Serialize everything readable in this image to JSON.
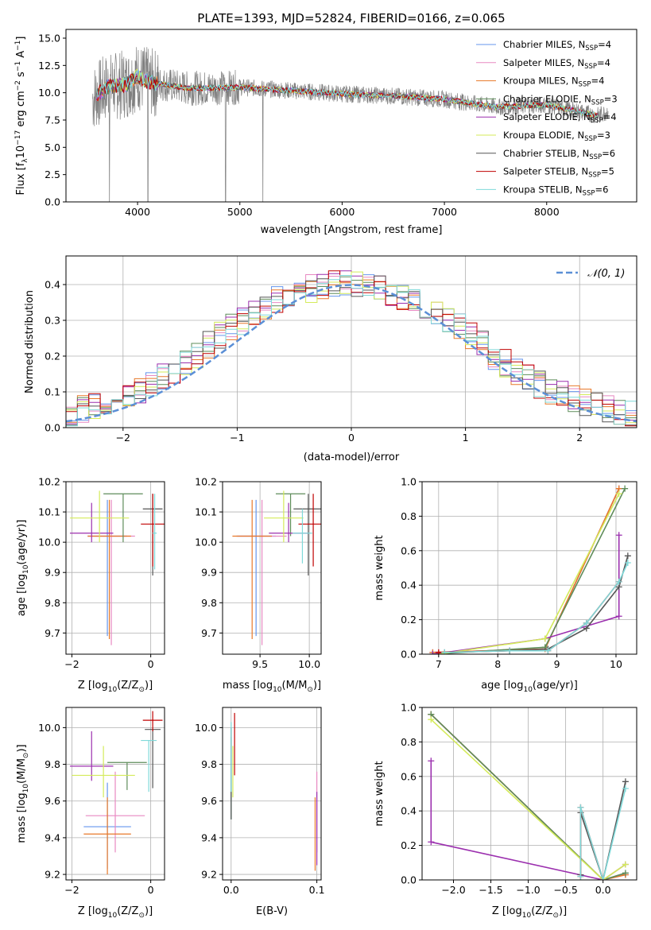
{
  "colors": {
    "chabrier_miles": "#6495ED",
    "salpeter_miles": "#E889C2",
    "kroupa_miles": "#E8792A",
    "chabrier_elodie": "#5E8C5A",
    "salpeter_elodie": "#9B2FAE",
    "kroupa_elodie": "#D4EB5A",
    "chabrier_stelib": "#555555",
    "salpeter_stelib": "#C00000",
    "kroupa_stelib": "#7FD9D9",
    "data": "#808080",
    "normal": "#5B8FD6"
  },
  "chart_data": [
    {
      "type": "line",
      "title": "PLATE=1393, MJD=52824, FIBERID=0166, z=0.065",
      "xlabel": "wavelength [Angstrom, rest frame]",
      "ylabel_parts": [
        "Flux [",
        "f",
        "λ",
        "10",
        "−17",
        " erg cm",
        "−2",
        " s",
        "−1",
        " A",
        "−1",
        "]"
      ],
      "xlim": [
        3300,
        8880
      ],
      "ylim": [
        0,
        15.8
      ],
      "xticks": [
        4000,
        5000,
        6000,
        7000,
        8000
      ],
      "yticks": [
        0.0,
        2.5,
        5.0,
        7.5,
        10.0,
        12.5,
        15.0
      ],
      "grid": false,
      "legend_position": "top-right",
      "series": [
        {
          "key": "chabrier_miles",
          "label_main": "Chabrier MILES, N",
          "label_sub": "SSP",
          "label_end": "=4"
        },
        {
          "key": "salpeter_miles",
          "label_main": "Salpeter MILES, N",
          "label_sub": "SSP",
          "label_end": "=4"
        },
        {
          "key": "kroupa_miles",
          "label_main": "Kroupa MILES, N",
          "label_sub": "SSP",
          "label_end": "=4"
        },
        {
          "key": "chabrier_elodie",
          "label_main": "Chabrier ELODIE, N",
          "label_sub": "SSP",
          "label_end": "=3"
        },
        {
          "key": "salpeter_elodie",
          "label_main": "Salpeter ELODIE, N",
          "label_sub": "SSP",
          "label_end": "=4"
        },
        {
          "key": "kroupa_elodie",
          "label_main": "Kroupa ELODIE, N",
          "label_sub": "SSP",
          "label_end": "=3"
        },
        {
          "key": "chabrier_stelib",
          "label_main": "Chabrier STELIB, N",
          "label_sub": "SSP",
          "label_end": "=6"
        },
        {
          "key": "salpeter_stelib",
          "label_main": "Salpeter STELIB, N",
          "label_sub": "SSP",
          "label_end": "=5"
        },
        {
          "key": "kroupa_stelib",
          "label_main": "Kroupa STELIB, N",
          "label_sub": "SSP",
          "label_end": "=6"
        }
      ],
      "spectrum_approx": {
        "x": [
          3560,
          3700,
          3900,
          4000,
          4100,
          4300,
          4500,
          5000,
          5500,
          6000,
          6500,
          7000,
          7500,
          8000,
          8500,
          8600
        ],
        "y": [
          9.5,
          10.5,
          10.8,
          11.5,
          11.0,
          10.7,
          10.4,
          10.5,
          10.2,
          9.9,
          9.7,
          9.4,
          8.7,
          8.9,
          7.9,
          8.3
        ]
      }
    },
    {
      "type": "histogram",
      "xlabel": "(data-model)/error",
      "ylabel": "Normed distribution",
      "xlim": [
        -2.5,
        2.5
      ],
      "ylim": [
        0,
        0.48
      ],
      "xticks": [
        -2,
        -1,
        0,
        1,
        2
      ],
      "yticks": [
        0.0,
        0.1,
        0.2,
        0.3,
        0.4
      ],
      "grid": true,
      "legend_label": "𝒩(0, 1)",
      "legend_position": "top-right",
      "bin_width": 0.1,
      "envelope_approx": [
        0.04,
        0.05,
        0.06,
        0.07,
        0.08,
        0.09,
        0.1,
        0.12,
        0.14,
        0.16,
        0.18,
        0.2,
        0.23,
        0.26,
        0.28,
        0.3,
        0.32,
        0.34,
        0.36,
        0.37,
        0.38,
        0.39,
        0.39,
        0.4,
        0.4,
        0.4,
        0.39,
        0.39,
        0.38,
        0.37,
        0.36,
        0.34,
        0.32,
        0.3,
        0.28,
        0.26,
        0.23,
        0.2,
        0.18,
        0.16,
        0.14,
        0.12,
        0.1,
        0.09,
        0.08,
        0.07,
        0.06,
        0.05,
        0.04,
        0.04
      ]
    },
    {
      "type": "scatter",
      "name": "age-vs-Z",
      "xlabel_parts": [
        "Z [log",
        "10",
        "(Z/Z",
        "⊙",
        ")]"
      ],
      "ylabel_parts": [
        "age  [log",
        "10",
        "(age/yr)]"
      ],
      "xlim": [
        -2.15,
        0.35
      ],
      "ylim": [
        9.63,
        10.2
      ],
      "xticks": [
        -2,
        0
      ],
      "yticks": [
        9.7,
        9.8,
        9.9,
        10.0,
        10.1,
        10.2
      ],
      "grid": true,
      "points": [
        {
          "key": "chabrier_miles",
          "x": -1.1,
          "y": 10.02,
          "xerr": 0.5,
          "yerr": [
            0.33,
            0.12
          ]
        },
        {
          "key": "salpeter_miles",
          "x": -1.0,
          "y": 10.02,
          "xerr": 0.6,
          "yerr": [
            0.36,
            0.12
          ]
        },
        {
          "key": "kroupa_miles",
          "x": -1.05,
          "y": 10.02,
          "xerr": 0.55,
          "yerr": [
            0.34,
            0.12
          ]
        },
        {
          "key": "chabrier_elodie",
          "x": -0.7,
          "y": 10.16,
          "xerr": 0.5,
          "yerr": [
            0.16,
            0.0
          ]
        },
        {
          "key": "salpeter_elodie",
          "x": -1.5,
          "y": 10.03,
          "xerr": 0.55,
          "yerr": [
            0.03,
            0.1
          ]
        },
        {
          "key": "kroupa_elodie",
          "x": -1.3,
          "y": 10.08,
          "xerr": 0.75,
          "yerr": [
            0.08,
            0.09
          ]
        },
        {
          "key": "chabrier_stelib",
          "x": 0.05,
          "y": 10.11,
          "xerr": 0.25,
          "yerr": [
            0.22,
            0.05
          ]
        },
        {
          "key": "salpeter_stelib",
          "x": 0.05,
          "y": 10.06,
          "xerr": 0.3,
          "yerr": [
            0.14,
            0.1
          ]
        },
        {
          "key": "kroupa_stelib",
          "x": 0.1,
          "y": 10.03,
          "xerr": 0.05,
          "yerr": [
            0.12,
            0.13
          ]
        }
      ]
    },
    {
      "type": "scatter",
      "name": "age-vs-mass",
      "xlabel_parts": [
        "mass [log",
        "10",
        "(M/M",
        "⊙",
        ")]"
      ],
      "ylabel_parts": [],
      "xlim": [
        9.12,
        10.12
      ],
      "ylim": [
        9.63,
        10.2
      ],
      "xticks": [
        9.5,
        10.0
      ],
      "yticks": [
        9.7,
        9.8,
        9.9,
        10.0,
        10.1,
        10.2
      ],
      "grid": true,
      "points": [
        {
          "key": "chabrier_miles",
          "x": 9.46,
          "y": 10.02,
          "xerr": 0.2,
          "yerr": [
            0.33,
            0.12
          ]
        },
        {
          "key": "salpeter_miles",
          "x": 9.52,
          "y": 10.02,
          "xerr": 0.25,
          "yerr": [
            0.36,
            0.12
          ]
        },
        {
          "key": "kroupa_miles",
          "x": 9.42,
          "y": 10.02,
          "xerr": 0.2,
          "yerr": [
            0.34,
            0.12
          ]
        },
        {
          "key": "chabrier_elodie",
          "x": 9.81,
          "y": 10.16,
          "xerr": 0.15,
          "yerr": [
            0.14,
            0.0
          ]
        },
        {
          "key": "salpeter_elodie",
          "x": 9.79,
          "y": 10.03,
          "xerr": 0.2,
          "yerr": [
            0.03,
            0.1
          ]
        },
        {
          "key": "kroupa_elodie",
          "x": 9.74,
          "y": 10.08,
          "xerr": 0.2,
          "yerr": [
            0.08,
            0.09
          ]
        },
        {
          "key": "chabrier_stelib",
          "x": 9.99,
          "y": 10.11,
          "xerr": 0.15,
          "yerr": [
            0.22,
            0.05
          ]
        },
        {
          "key": "salpeter_stelib",
          "x": 10.04,
          "y": 10.06,
          "xerr": 0.15,
          "yerr": [
            0.14,
            0.1
          ]
        },
        {
          "key": "kroupa_stelib",
          "x": 9.93,
          "y": 10.03,
          "xerr": 0.1,
          "yerr": [
            0.1,
            0.08
          ]
        }
      ]
    },
    {
      "type": "line",
      "name": "mass-weight-vs-age",
      "xlabel_parts": [
        "age  [log",
        "10",
        "(age/yr)]"
      ],
      "ylabel": "mass weight",
      "xlim": [
        6.72,
        10.35
      ],
      "ylim": [
        0,
        1.0
      ],
      "xticks": [
        7,
        8,
        9,
        10
      ],
      "yticks": [
        0.0,
        0.2,
        0.4,
        0.6,
        0.8,
        1.0
      ],
      "grid": true,
      "series": [
        {
          "key": "chabrier_miles",
          "x": [
            6.9,
            8.8,
            10.05
          ],
          "y": [
            0.01,
            0.03,
            0.96
          ]
        },
        {
          "key": "salpeter_miles",
          "x": [
            6.9,
            8.8,
            10.05
          ],
          "y": [
            0.01,
            0.03,
            0.96
          ]
        },
        {
          "key": "kroupa_miles",
          "x": [
            6.9,
            8.8,
            10.05
          ],
          "y": [
            0.01,
            0.03,
            0.96
          ]
        },
        {
          "key": "chabrier_elodie",
          "x": [
            6.9,
            8.8,
            10.15
          ],
          "y": [
            0.0,
            0.04,
            0.96
          ]
        },
        {
          "key": "salpeter_elodie",
          "x": [
            6.9,
            8.8,
            10.05,
            10.05
          ],
          "y": [
            0.0,
            0.09,
            0.22,
            0.69
          ]
        },
        {
          "key": "kroupa_elodie",
          "x": [
            7.0,
            8.8,
            10.05
          ],
          "y": [
            0.0,
            0.09,
            0.93
          ]
        },
        {
          "key": "chabrier_stelib",
          "x": [
            7.1,
            8.2,
            8.85,
            9.5,
            10.05,
            10.2
          ],
          "y": [
            0.01,
            0.02,
            0.03,
            0.15,
            0.39,
            0.57
          ]
        },
        {
          "key": "salpeter_stelib",
          "x": [
            7.0,
            8.2,
            8.85,
            9.5,
            10.05
          ],
          "y": [
            0.01,
            0.02,
            0.02,
            0.18,
            0.42
          ]
        },
        {
          "key": "kroupa_stelib",
          "x": [
            7.1,
            8.2,
            8.85,
            9.5,
            10.05,
            10.2
          ],
          "y": [
            0.01,
            0.02,
            0.02,
            0.18,
            0.42,
            0.53
          ]
        }
      ]
    },
    {
      "type": "scatter",
      "name": "mass-vs-Z",
      "xlabel_parts": [
        "Z [log",
        "10",
        "(Z/Z",
        "⊙",
        ")]"
      ],
      "ylabel_parts": [
        "mass [log",
        "10",
        "(M/M",
        "⊙",
        ")]"
      ],
      "xlim": [
        -2.15,
        0.35
      ],
      "ylim": [
        9.17,
        10.11
      ],
      "xticks": [
        -2,
        0
      ],
      "yticks": [
        9.2,
        9.4,
        9.6,
        9.8,
        10.0
      ],
      "grid": true,
      "points": [
        {
          "key": "chabrier_miles",
          "x": -1.1,
          "y": 9.46,
          "xerr": 0.6,
          "yerr": [
            0.23,
            0.24
          ]
        },
        {
          "key": "salpeter_miles",
          "x": -0.9,
          "y": 9.52,
          "xerr": 0.75,
          "yerr": [
            0.2,
            0.24
          ]
        },
        {
          "key": "kroupa_miles",
          "x": -1.1,
          "y": 9.42,
          "xerr": 0.6,
          "yerr": [
            0.22,
            0.2
          ]
        },
        {
          "key": "chabrier_elodie",
          "x": -0.6,
          "y": 9.81,
          "xerr": 0.5,
          "yerr": [
            0.15,
            0.0
          ]
        },
        {
          "key": "salpeter_elodie",
          "x": -1.5,
          "y": 9.79,
          "xerr": 0.55,
          "yerr": [
            0.08,
            0.19
          ]
        },
        {
          "key": "kroupa_elodie",
          "x": -1.2,
          "y": 9.74,
          "xerr": 0.8,
          "yerr": [
            0.12,
            0.16
          ]
        },
        {
          "key": "chabrier_stelib",
          "x": 0.05,
          "y": 9.99,
          "xerr": 0.2,
          "yerr": [
            0.32,
            0.0
          ]
        },
        {
          "key": "salpeter_stelib",
          "x": 0.05,
          "y": 10.04,
          "xerr": 0.25,
          "yerr": [
            0.06,
            0.05
          ]
        },
        {
          "key": "kroupa_stelib",
          "x": -0.05,
          "y": 9.93,
          "xerr": 0.2,
          "yerr": [
            0.28,
            0.0
          ]
        }
      ]
    },
    {
      "type": "scatter",
      "name": "mass-vs-ebv",
      "xlabel": "E(B-V)",
      "xlim": [
        -0.01,
        0.105
      ],
      "ylim": [
        9.17,
        10.11
      ],
      "xticks": [
        0.0,
        0.1
      ],
      "yticks": [
        9.2,
        9.4,
        9.6,
        9.8,
        10.0
      ],
      "grid": true,
      "points": [
        {
          "key": "chabrier_miles",
          "x": 0.0,
          "y": 9.7,
          "yerr": [
            0.2,
            0.15
          ]
        },
        {
          "key": "salpeter_miles",
          "x": 0.1,
          "y": 9.52,
          "yerr": [
            0.2,
            0.24
          ]
        },
        {
          "key": "kroupa_miles",
          "x": 0.098,
          "y": 9.42,
          "yerr": [
            0.2,
            0.2
          ]
        },
        {
          "key": "chabrier_elodie",
          "x": 0.0,
          "y": 9.7,
          "yerr": [
            0.2,
            0.25
          ]
        },
        {
          "key": "salpeter_elodie",
          "x": 0.1,
          "y": 9.45,
          "yerr": [
            0.2,
            0.2
          ]
        },
        {
          "key": "kroupa_elodie",
          "x": 0.002,
          "y": 9.74,
          "yerr": [
            0.12,
            0.16
          ]
        },
        {
          "key": "chabrier_stelib",
          "x": 0.0,
          "y": 9.75,
          "yerr": [
            0.25,
            0.25
          ]
        },
        {
          "key": "salpeter_stelib",
          "x": 0.004,
          "y": 9.9,
          "yerr": [
            0.16,
            0.18
          ]
        },
        {
          "key": "kroupa_stelib",
          "x": 0.0,
          "y": 9.85,
          "yerr": [
            0.2,
            0.18
          ]
        }
      ]
    },
    {
      "type": "line",
      "name": "mass-weight-vs-Z",
      "xlabel_parts": [
        "Z [log",
        "10",
        "(Z/Z",
        "⊙",
        ")]"
      ],
      "ylabel": "mass weight",
      "xlim": [
        -2.42,
        0.45
      ],
      "ylim": [
        0,
        1.0
      ],
      "xticks": [
        -2.0,
        -1.5,
        -1.0,
        -0.5,
        0.0
      ],
      "yticks": [
        0.0,
        0.2,
        0.4,
        0.6,
        0.8,
        1.0
      ],
      "grid": true,
      "series": [
        {
          "key": "chabrier_miles",
          "x": [
            -2.3,
            0.0,
            0.3
          ],
          "y": [
            0.96,
            0.0,
            0.03
          ]
        },
        {
          "key": "salpeter_miles",
          "x": [
            -2.3,
            0.0,
            0.3
          ],
          "y": [
            0.96,
            0.0,
            0.03
          ]
        },
        {
          "key": "kroupa_miles",
          "x": [
            -2.3,
            0.0,
            0.3
          ],
          "y": [
            0.96,
            0.0,
            0.03
          ]
        },
        {
          "key": "chabrier_elodie",
          "x": [
            -2.3,
            0.0,
            0.3
          ],
          "y": [
            0.96,
            0.0,
            0.04
          ]
        },
        {
          "key": "salpeter_elodie",
          "x": [
            -2.3,
            -2.3,
            0.0,
            0.3
          ],
          "y": [
            0.69,
            0.22,
            0.0,
            0.09
          ]
        },
        {
          "key": "kroupa_elodie",
          "x": [
            -2.3,
            0.0,
            0.3
          ],
          "y": [
            0.93,
            0.0,
            0.09
          ]
        },
        {
          "key": "chabrier_stelib",
          "x": [
            -0.3,
            -0.3,
            0.0,
            0.3
          ],
          "y": [
            0.03,
            0.39,
            0.0,
            0.57
          ]
        },
        {
          "key": "salpeter_stelib",
          "x": [
            -0.3,
            -0.3,
            0.0
          ],
          "y": [
            0.02,
            0.42,
            0.0
          ]
        },
        {
          "key": "kroupa_stelib",
          "x": [
            -0.3,
            -0.3,
            0.0,
            0.3
          ],
          "y": [
            0.02,
            0.42,
            0.0,
            0.53
          ]
        }
      ]
    }
  ]
}
